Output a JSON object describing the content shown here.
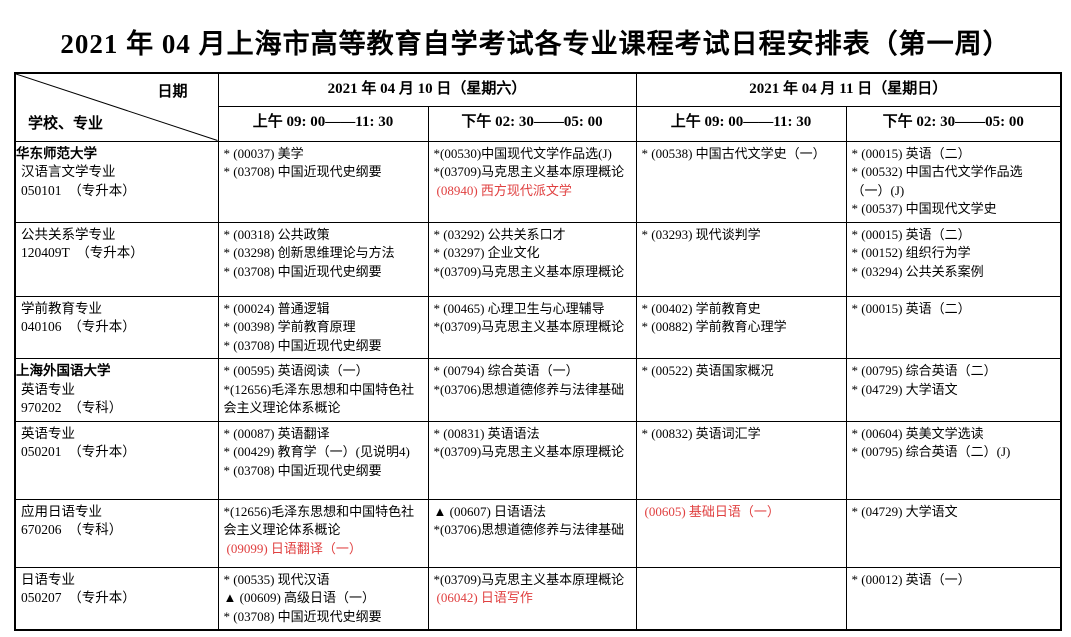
{
  "title": "2021 年 04 月上海市高等教育自学考试各专业课程考试日程安排表（第一周）",
  "table": {
    "corner": {
      "top": "日期",
      "bottom": "学校、专业"
    },
    "dates": [
      {
        "label": "2021 年 04 月 10 日（星期六）",
        "sessions": [
          "上午 09: 00——11: 30",
          "下午 02: 30——05: 00"
        ]
      },
      {
        "label": "2021 年 04 月 11 日（星期日）",
        "sessions": [
          "上午 09: 00——11: 30",
          "下午 02: 30——05: 00"
        ]
      }
    ],
    "colors": {
      "highlight": "#e04040"
    },
    "rows": [
      {
        "school": "华东师范大学",
        "major": "汉语言文学专业",
        "code": "050101　（专升本）",
        "cells": [
          [
            {
              "t": "* (00037) 美学"
            },
            {
              "t": "* (03708) 中国近现代史纲要"
            }
          ],
          [
            {
              "t": "*(00530)中国现代文学作品选(J)"
            },
            {
              "t": "*(03709)马克思主义基本原理概论"
            },
            {
              "t": "(08940) 西方现代派文学",
              "red": true
            }
          ],
          [
            {
              "t": "* (00538) 中国古代文学史（一）"
            }
          ],
          [
            {
              "t": "* (00015) 英语（二）"
            },
            {
              "t": "* (00532) 中国古代文学作品选（一）(J)"
            },
            {
              "t": "* (00537) 中国现代文学史"
            }
          ]
        ]
      },
      {
        "school": "",
        "major": "公共关系学专业",
        "code": "120409T　（专升本）",
        "cells": [
          [
            {
              "t": "* (00318) 公共政策"
            },
            {
              "t": "* (03298) 创新思维理论与方法"
            },
            {
              "t": "* (03708) 中国近现代史纲要"
            }
          ],
          [
            {
              "t": "* (03292) 公共关系口才"
            },
            {
              "t": "* (03297) 企业文化"
            },
            {
              "t": "*(03709)马克思主义基本原理概论"
            }
          ],
          [
            {
              "t": "* (03293) 现代谈判学"
            }
          ],
          [
            {
              "t": "* (00015) 英语（二）"
            },
            {
              "t": "* (00152) 组织行为学"
            },
            {
              "t": "* (03294) 公共关系案例"
            }
          ]
        ]
      },
      {
        "school": "",
        "major": "学前教育专业",
        "code": "040106　（专升本）",
        "cells": [
          [
            {
              "t": "* (00024) 普通逻辑"
            },
            {
              "t": "* (00398) 学前教育原理"
            },
            {
              "t": "* (03708) 中国近现代史纲要"
            }
          ],
          [
            {
              "t": "* (00465) 心理卫生与心理辅导"
            },
            {
              "t": "*(03709)马克思主义基本原理概论"
            }
          ],
          [
            {
              "t": "* (00402) 学前教育史"
            },
            {
              "t": "* (00882) 学前教育心理学"
            }
          ],
          [
            {
              "t": "* (00015) 英语（二）"
            }
          ]
        ]
      },
      {
        "school": "上海外国语大学",
        "major": "英语专业",
        "code": "970202　（专科）",
        "cells": [
          [
            {
              "t": "* (00595) 英语阅读（一）"
            },
            {
              "t": "*(12656)毛泽东思想和中国特色社会主义理论体系概论"
            }
          ],
          [
            {
              "t": "* (00794) 综合英语（一）"
            },
            {
              "t": "*(03706)思想道德修养与法律基础"
            }
          ],
          [
            {
              "t": "* (00522) 英语国家概况"
            }
          ],
          [
            {
              "t": "* (00795) 综合英语（二）"
            },
            {
              "t": "* (04729) 大学语文"
            }
          ]
        ]
      },
      {
        "school": "",
        "major": "英语专业",
        "code": "050201　（专升本）",
        "cells": [
          [
            {
              "t": "* (00087) 英语翻译"
            },
            {
              "t": "* (00429) 教育学（一）(见说明4)"
            },
            {
              "t": "* (03708) 中国近现代史纲要"
            }
          ],
          [
            {
              "t": "* (00831) 英语语法"
            },
            {
              "t": "*(03709)马克思主义基本原理概论"
            }
          ],
          [
            {
              "t": "* (00832) 英语词汇学"
            }
          ],
          [
            {
              "t": "* (00604) 英美文学选读"
            },
            {
              "t": "* (00795) 综合英语（二）(J)"
            }
          ]
        ]
      },
      {
        "school": "",
        "major": "应用日语专业",
        "code": "670206　（专科）",
        "cells": [
          [
            {
              "t": "*(12656)毛泽东思想和中国特色社会主义理论体系概论"
            },
            {
              "t": "(09099) 日语翻译（一）",
              "red": true
            }
          ],
          [
            {
              "t": "▲ (00607) 日语语法"
            },
            {
              "t": "*(03706)思想道德修养与法律基础"
            }
          ],
          [
            {
              "t": "(00605) 基础日语（一）",
              "red": true
            }
          ],
          [
            {
              "t": "* (04729) 大学语文"
            }
          ]
        ]
      },
      {
        "school": "",
        "major": "日语专业",
        "code": "050207　（专升本）",
        "cells": [
          [
            {
              "t": "* (00535) 现代汉语"
            },
            {
              "t": "▲ (00609) 高级日语（一）"
            },
            {
              "t": "* (03708) 中国近现代史纲要"
            }
          ],
          [
            {
              "t": "*(03709)马克思主义基本原理概论"
            },
            {
              "t": "(06042) 日语写作",
              "red": true
            }
          ],
          [],
          [
            {
              "t": "* (00012) 英语（一）"
            }
          ]
        ]
      }
    ]
  }
}
